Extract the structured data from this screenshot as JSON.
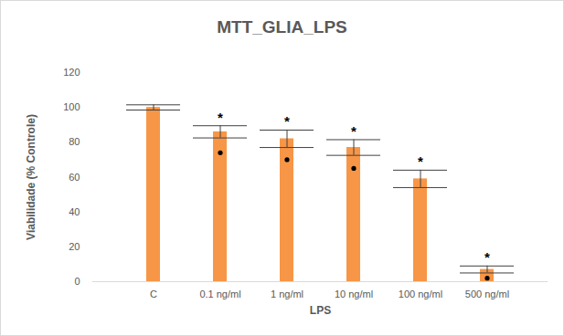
{
  "chart_data": {
    "type": "bar",
    "title": "MTT_GLIA_LPS",
    "x_label": "LPS",
    "y_label": "Viabilidade (% Controle)",
    "categories": [
      "C",
      "0.1 ng/ml",
      "1 ng/ml",
      "10 ng/ml",
      "100 ng/ml",
      "500 ng/ml"
    ],
    "values": [
      100,
      86,
      82,
      77,
      59,
      7
    ],
    "errors": [
      1.5,
      3.5,
      5,
      4.5,
      5,
      2
    ],
    "annotations": [
      null,
      "*",
      "*",
      "*",
      "*",
      "*"
    ],
    "markers": [
      null,
      74,
      70,
      65,
      null,
      2
    ],
    "marker": "circle",
    "color": "#f79646",
    "ylim": [
      0,
      120
    ],
    "yticks": [
      0,
      20,
      40,
      60,
      80,
      100,
      120
    ],
    "grid": false
  }
}
